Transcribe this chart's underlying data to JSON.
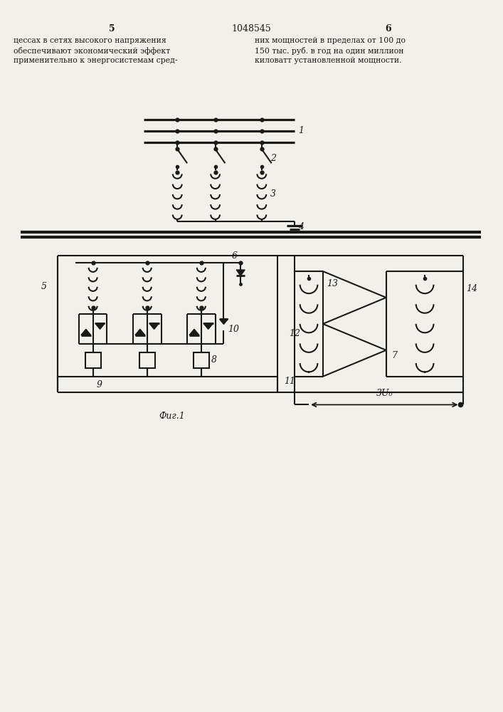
{
  "bg_color": "#f2f0eb",
  "line_color": "#1a1a1a",
  "page_num_left": "5",
  "page_num_center": "1048545",
  "page_num_right": "6",
  "text_left_1": "цессах в сетях высокого напряжения",
  "text_left_2": "обеспечивают экономический эффект",
  "text_left_3": "применительно к энергосистемам сред-",
  "text_right_1": "них мощностей в пределах от 100 до",
  "text_right_2": "150 тыс. руб. в год на один миллион",
  "text_right_3": "киловатт установленной мощности.",
  "fig_caption": "Фиг.1"
}
